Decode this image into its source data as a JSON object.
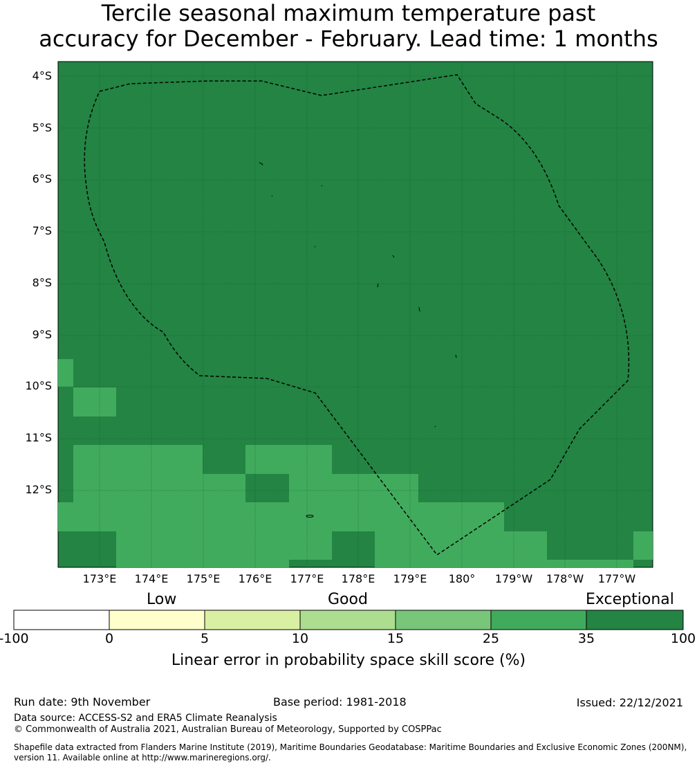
{
  "title": {
    "line1": "Tercile seasonal maximum temperature past",
    "line2": "accuracy for December - February. Lead time: 1 months"
  },
  "map": {
    "lat_labels": [
      "4°S",
      "5°S",
      "6°S",
      "7°S",
      "8°S",
      "9°S",
      "10°S",
      "11°S",
      "12°S"
    ],
    "lon_labels": [
      "173°E",
      "174°E",
      "175°E",
      "176°E",
      "177°E",
      "178°E",
      "179°E",
      "180°",
      "179°W",
      "178°W",
      "177°W"
    ],
    "background_color": "#238443",
    "eez_boundary_style": "dashed",
    "grid": true
  },
  "colorbar": {
    "categories": [
      "Low",
      "Good",
      "Exceptional"
    ],
    "ticks": [
      "-100",
      "0",
      "5",
      "10",
      "15",
      "25",
      "35",
      "100"
    ],
    "colors": [
      "#ffffff",
      "#ffffcc",
      "#d9f0a3",
      "#addd8e",
      "#78c679",
      "#41ab5d",
      "#238443"
    ],
    "title": "Linear error in probability space skill score (%)"
  },
  "footer": {
    "run_date": "Run date: 9th November",
    "base_period": "Base period: 1981-2018",
    "issued": "Issued: 22/12/2021",
    "data_source": "Data source: ACCESS-S2 and ERA5 Climate Reanalysis",
    "copyright": "© Commonwealth of Australia 2021, Australian Bureau of Meteorology, Supported by COSPPac",
    "shapefile_line1": "Shapefile data extracted from Flanders Marine Institute (2019), Maritime Boundaries Geodatabase: Maritime Boundaries and Exclusive Economic Zones (200NM),",
    "shapefile_line2": "version 11. Available online at http://www.marineregions.org/."
  }
}
